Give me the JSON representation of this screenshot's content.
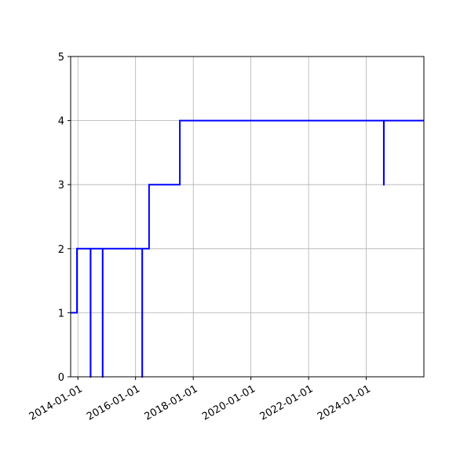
{
  "chart_data": {
    "type": "line",
    "title": "",
    "xlabel": "",
    "ylabel": "",
    "x_axis_type": "date",
    "xlim": [
      "2013-10-01",
      "2025-12-31"
    ],
    "ylim": [
      0,
      5
    ],
    "xticks": [
      "2014-01-01",
      "2016-01-01",
      "2018-01-01",
      "2020-01-01",
      "2022-01-01",
      "2024-01-01"
    ],
    "yticks": [
      0,
      1,
      2,
      3,
      4,
      5
    ],
    "grid": true,
    "legend": "none",
    "step": true,
    "series": [
      {
        "color": "#0000ff",
        "x": [
          "2013-10-01",
          "2013-12-20",
          "2014-06-10",
          "2014-06-11",
          "2014-11-10",
          "2014-11-11",
          "2016-03-25",
          "2016-03-26",
          "2016-06-20",
          "2017-07-15",
          "2024-08-10",
          "2024-08-11",
          "2025-12-31"
        ],
        "y": [
          1,
          2,
          0,
          2,
          0,
          2,
          0,
          2,
          3,
          4,
          3,
          4,
          4
        ]
      }
    ]
  }
}
